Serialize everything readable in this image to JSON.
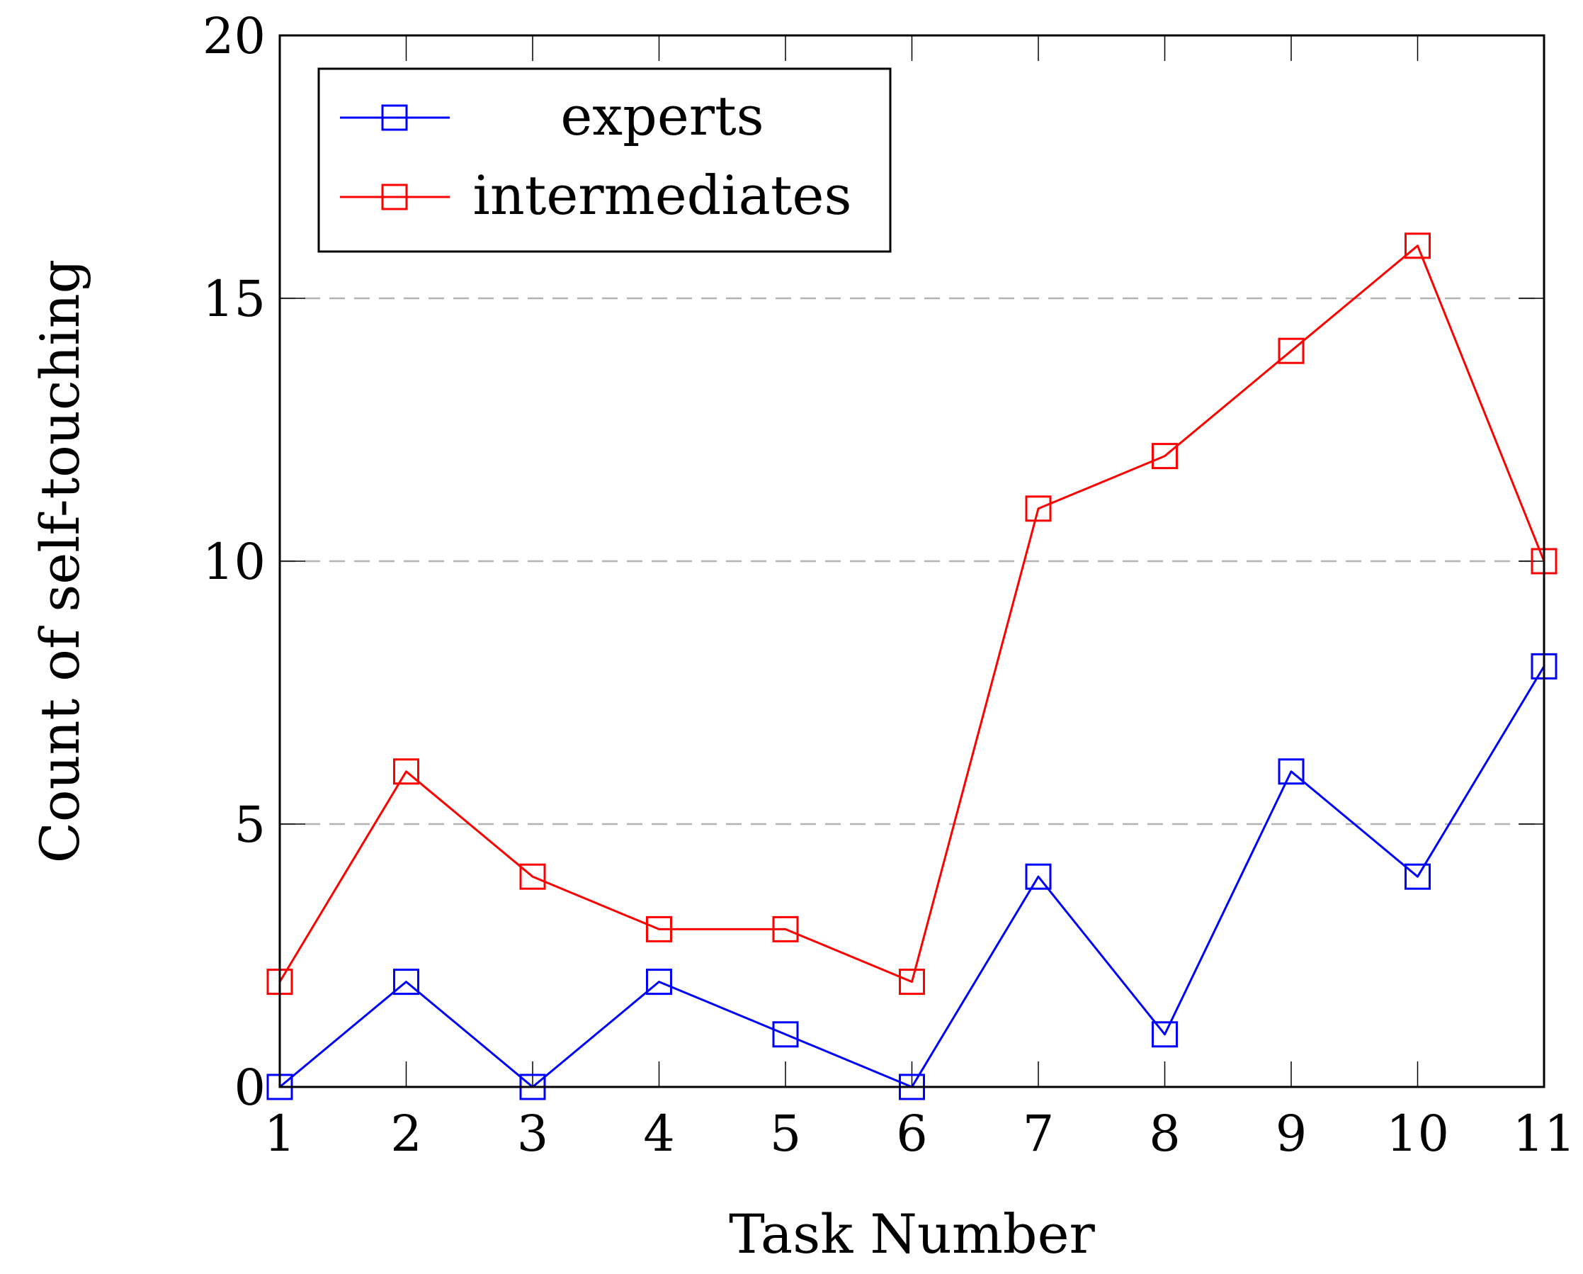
{
  "chart_data": {
    "type": "line",
    "title": "",
    "xlabel": "Task Number",
    "ylabel": "Count of self-touching",
    "x": [
      1,
      2,
      3,
      4,
      5,
      6,
      7,
      8,
      9,
      10,
      11
    ],
    "x_tick_labels": [
      "1",
      "2",
      "3",
      "4",
      "5",
      "6",
      "7",
      "8",
      "9",
      "10",
      "11"
    ],
    "xlim": [
      1,
      11
    ],
    "ylim": [
      0,
      20
    ],
    "y_ticks": [
      0,
      5,
      10,
      15,
      20
    ],
    "y_tick_labels": [
      "0",
      "5",
      "10",
      "15",
      "20"
    ],
    "grid": {
      "y": true,
      "x": false,
      "style": "dashed"
    },
    "legend_position": "top-left",
    "series": [
      {
        "name": "experts",
        "color": "#0000ff",
        "marker": "square",
        "values": [
          0,
          2,
          0,
          2,
          1,
          0,
          4,
          1,
          6,
          4,
          8
        ]
      },
      {
        "name": "intermediates",
        "color": "#ff0000",
        "marker": "square",
        "values": [
          2,
          6,
          4,
          3,
          3,
          2,
          11,
          12,
          14,
          16,
          10
        ]
      }
    ]
  }
}
